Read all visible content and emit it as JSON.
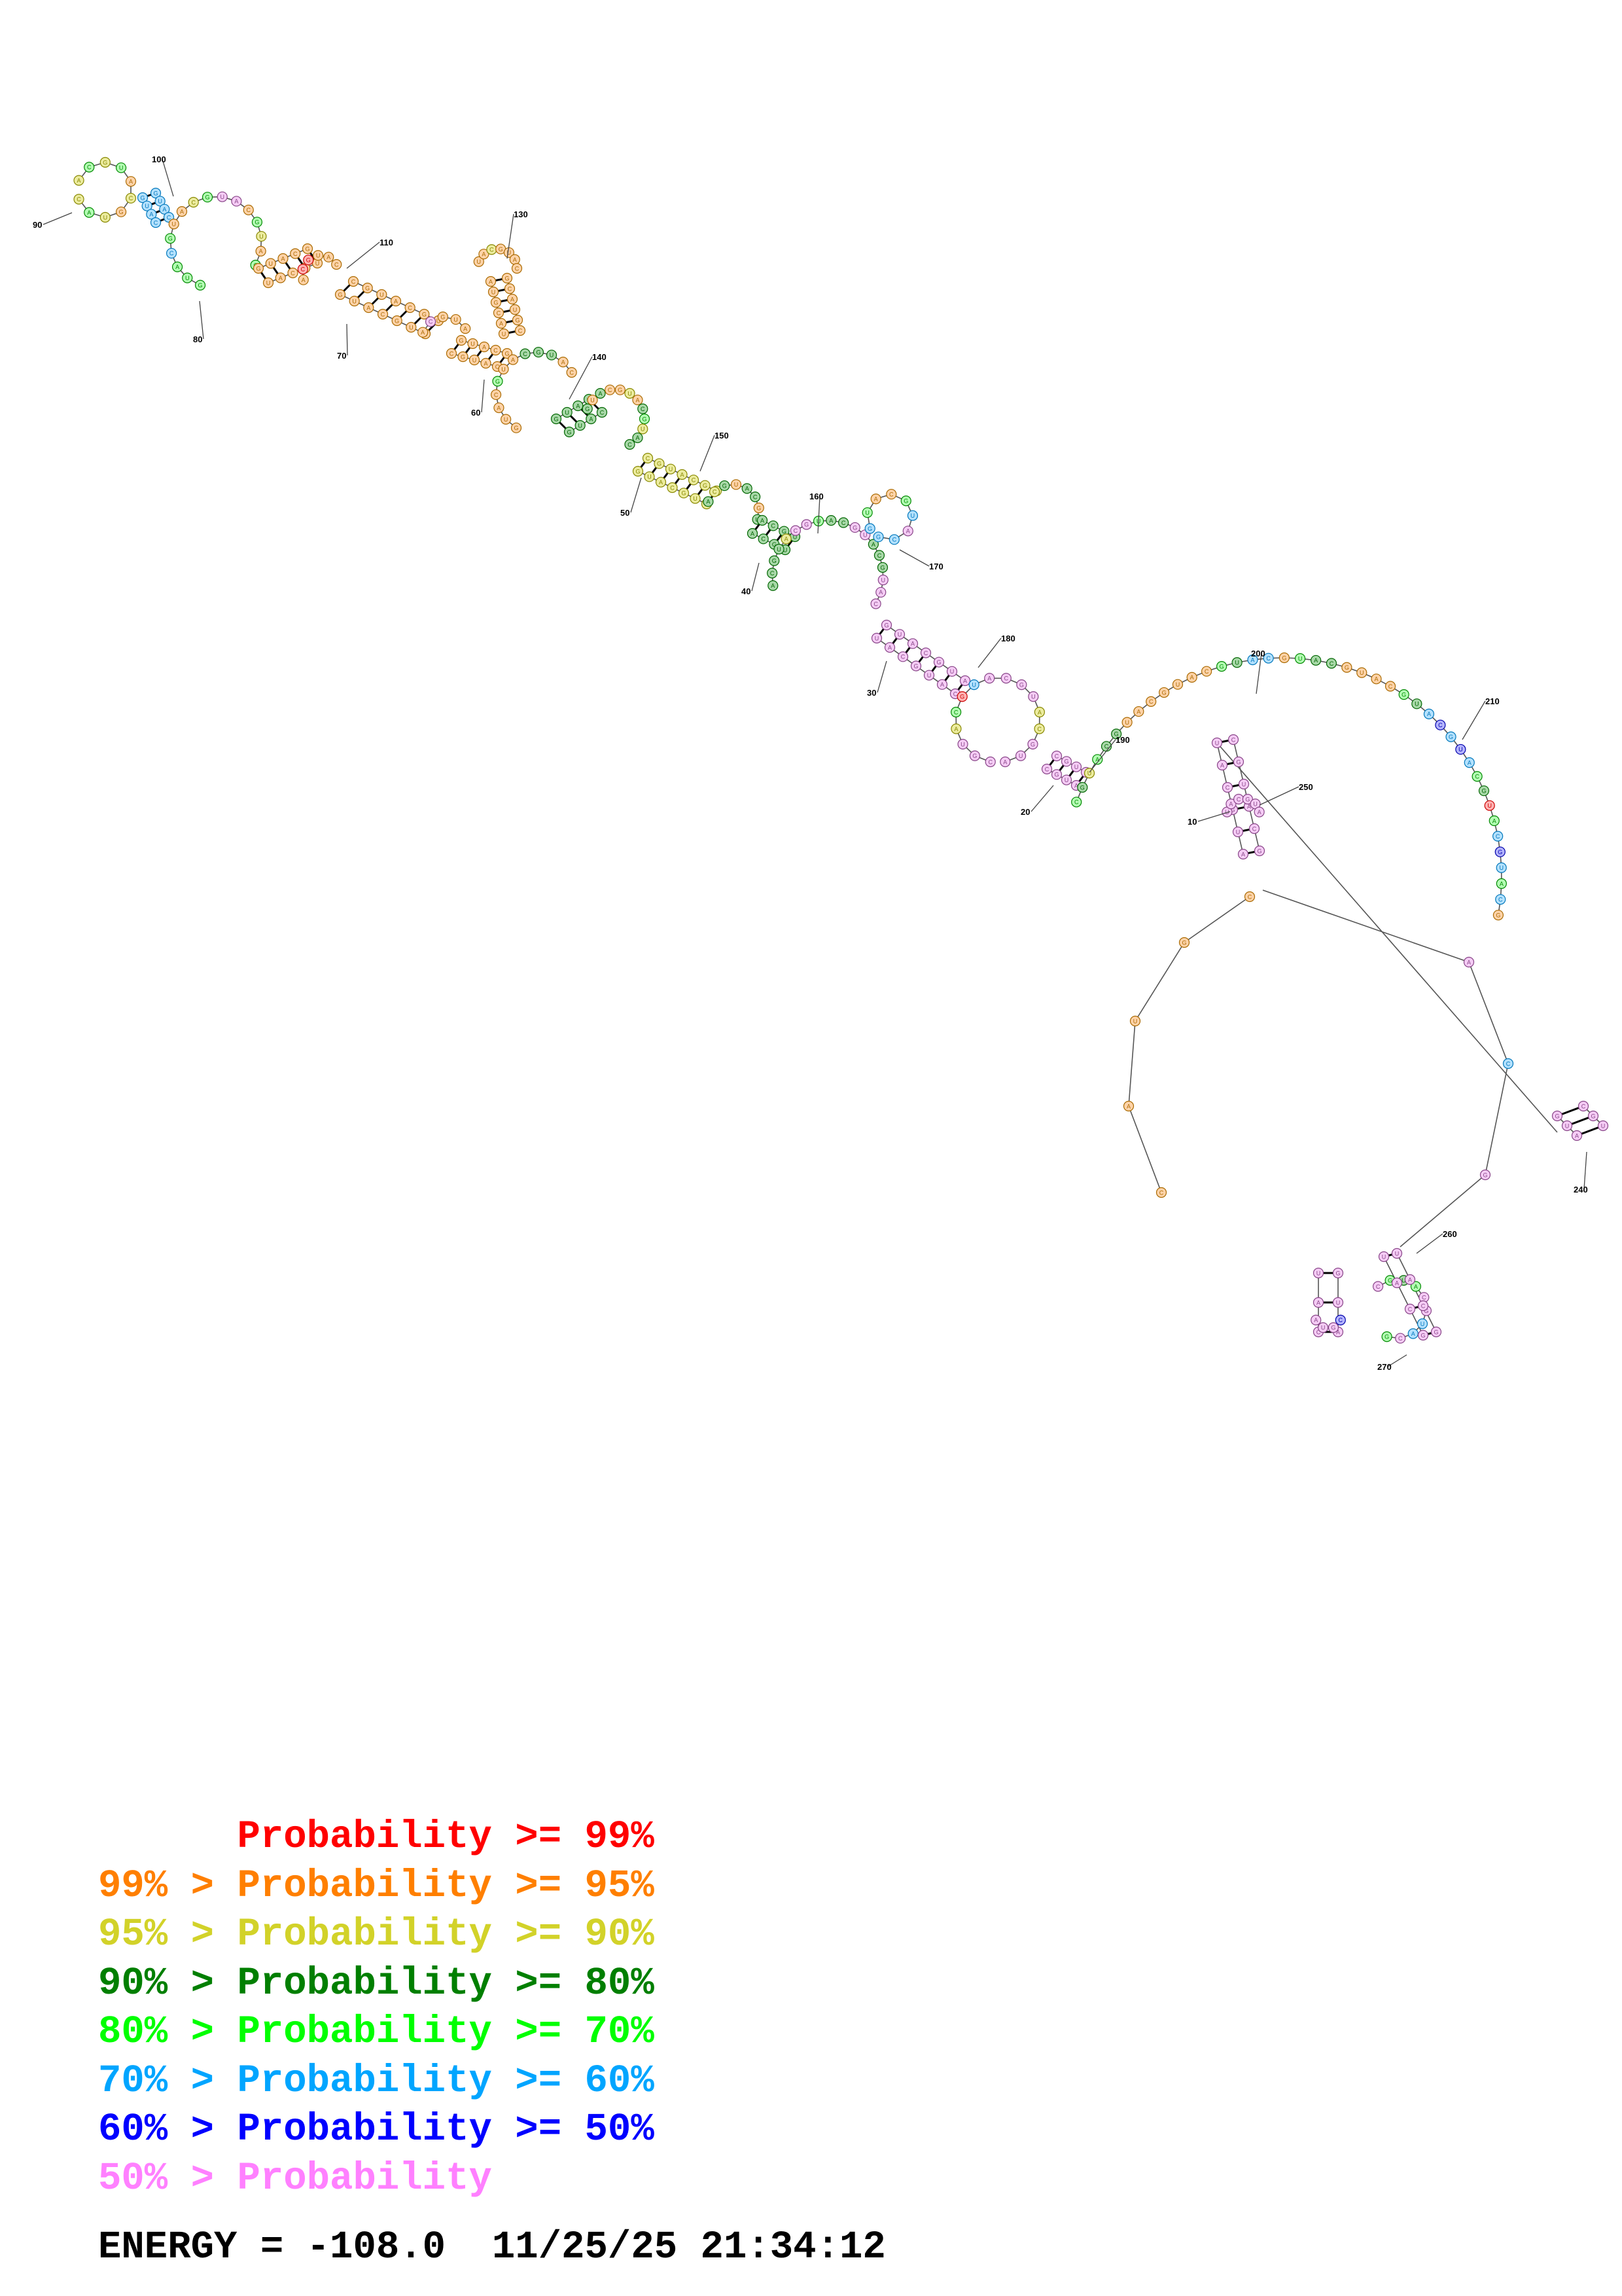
{
  "diagram": {
    "position_labels": [
      "10",
      "20",
      "30",
      "40",
      "50",
      "60",
      "70",
      "80",
      "90",
      "100",
      "110",
      "130",
      "140",
      "150",
      "160",
      "170",
      "180",
      "190",
      "200",
      "210",
      "240",
      "250",
      "260",
      "270"
    ]
  },
  "legend": [
    {
      "lower": "",
      "upper": "Probability >= 99%",
      "color": "#ff0000"
    },
    {
      "lower": "99% > ",
      "upper": "Probability >= 95%",
      "color": "#ff7f00"
    },
    {
      "lower": "95% > ",
      "upper": "Probability >= 90%",
      "color": "#d2d229"
    },
    {
      "lower": "90% > ",
      "upper": "Probability >= 80%",
      "color": "#007f00"
    },
    {
      "lower": "80% > ",
      "upper": "Probability >= 70%",
      "color": "#00ff00"
    },
    {
      "lower": "70% > ",
      "upper": "Probability >= 60%",
      "color": "#00a5ff"
    },
    {
      "lower": "60% > ",
      "upper": "Probability >= 50%",
      "color": "#0000ff"
    },
    {
      "lower": "50% > ",
      "upper": "Probability",
      "color": "#ff80ff"
    }
  ],
  "footer": {
    "energy": "ENERGY = -108.0",
    "timestamp": "11/25/25 21:34:12"
  }
}
